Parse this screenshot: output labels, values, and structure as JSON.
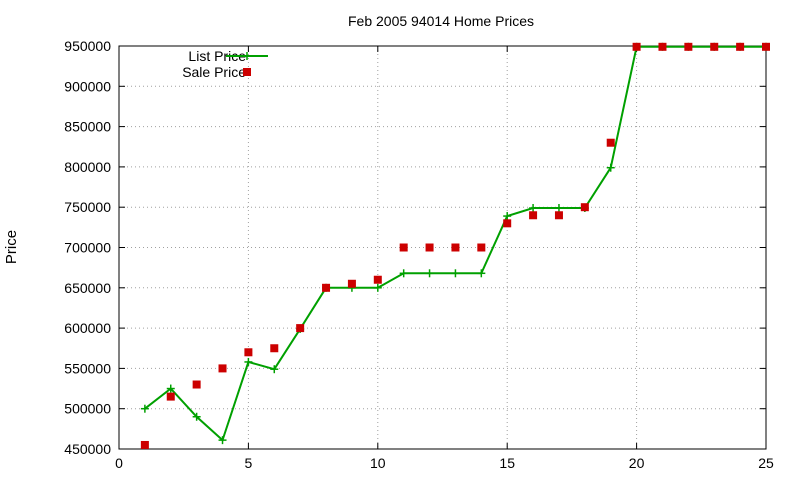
{
  "chart_data": {
    "type": "line",
    "title": "Feb 2005 94014 Home Prices",
    "xlabel": "",
    "ylabel": "Price",
    "xlim": [
      0,
      25
    ],
    "ylim": [
      450000,
      950000
    ],
    "x_ticks": [
      0,
      5,
      10,
      15,
      20,
      25
    ],
    "y_ticks": [
      450000,
      500000,
      550000,
      600000,
      650000,
      700000,
      750000,
      800000,
      850000,
      900000,
      950000
    ],
    "grid": true,
    "legend_position": "top-left",
    "series": [
      {
        "name": "List Price",
        "style": "line+cross",
        "color": "#00a000",
        "x": [
          1,
          2,
          3,
          4,
          5,
          6,
          7,
          8,
          9,
          10,
          11,
          12,
          13,
          14,
          15,
          16,
          17,
          18,
          19,
          20,
          21,
          22,
          23,
          24,
          25
        ],
        "y": [
          500000,
          525000,
          490000,
          461000,
          558000,
          549000,
          599000,
          650000,
          650000,
          650000,
          668000,
          668000,
          668000,
          668000,
          739000,
          749000,
          749000,
          749000,
          799000,
          949000,
          949000,
          949000,
          949000,
          949000,
          949000
        ]
      },
      {
        "name": "Sale Price",
        "style": "square-points",
        "color": "#cc0000",
        "x": [
          1,
          2,
          3,
          4,
          5,
          6,
          7,
          8,
          9,
          10,
          11,
          12,
          13,
          14,
          15,
          16,
          17,
          18,
          19,
          20,
          21,
          22,
          23,
          24,
          25
        ],
        "y": [
          455000,
          515000,
          530000,
          550000,
          570000,
          575000,
          600000,
          650000,
          655000,
          660000,
          700000,
          700000,
          700000,
          700000,
          730000,
          740000,
          740000,
          750000,
          830000,
          949000,
          949000,
          949000,
          949000,
          949000,
          949000
        ]
      }
    ]
  }
}
